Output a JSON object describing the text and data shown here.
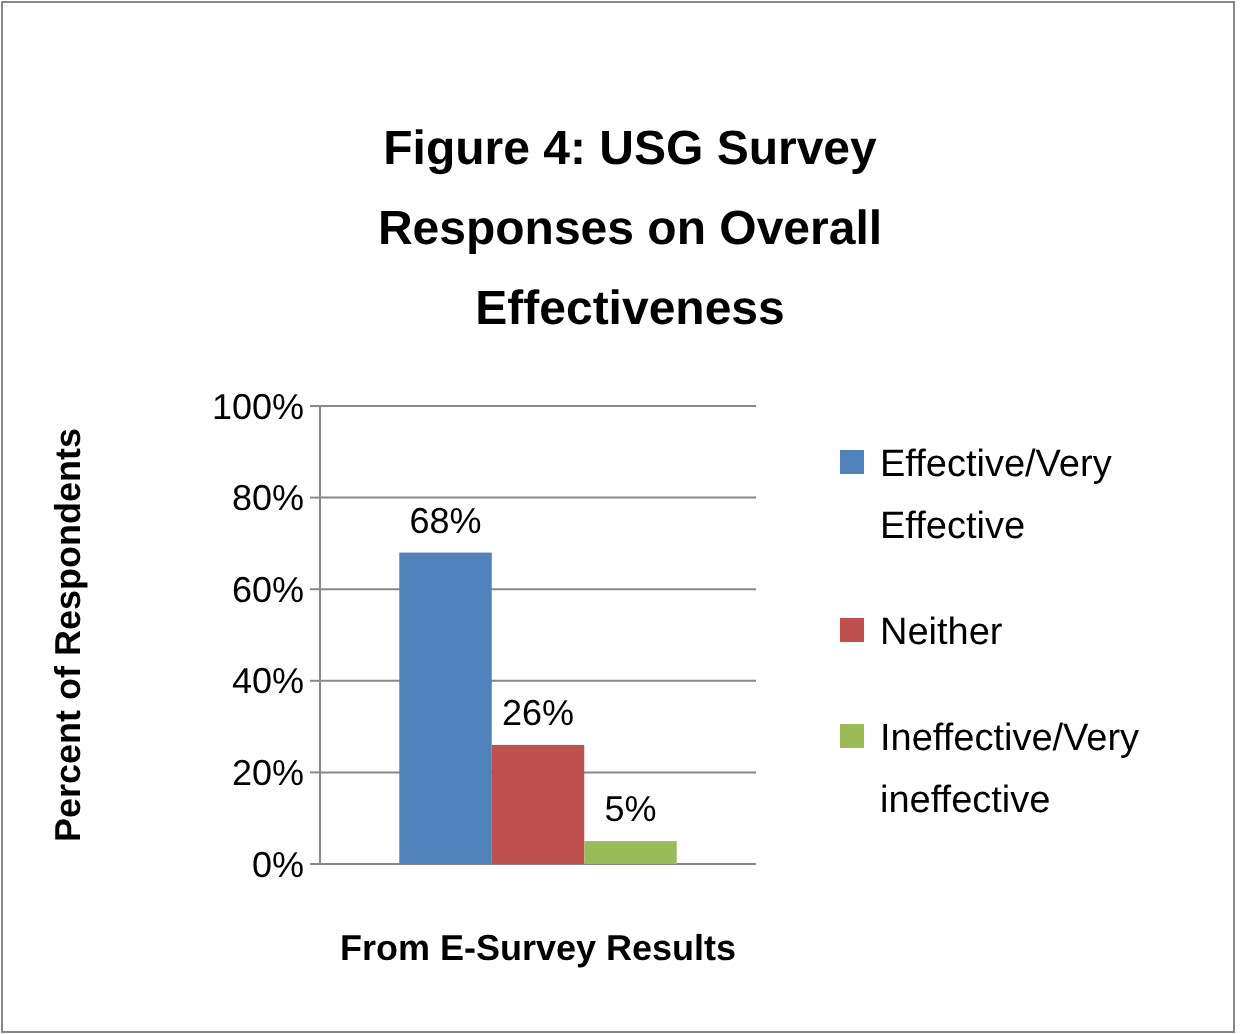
{
  "chart_data": {
    "type": "bar",
    "title": "Figure 4: USG Survey Responses on Overall Effectiveness",
    "xlabel": "From E-Survey Results",
    "ylabel": "Percent of Respondents",
    "categories": [
      null
    ],
    "series": [
      {
        "name": "Effective/Very Effective",
        "color": "#4f81bd",
        "values": [
          68
        ],
        "value_labels": [
          "68%"
        ]
      },
      {
        "name": "Neither",
        "color": "#c0504d",
        "values": [
          26
        ],
        "value_labels": [
          "26%"
        ]
      },
      {
        "name": "Ineffective/Very ineffective",
        "color": "#9bbb59",
        "values": [
          5
        ],
        "value_labels": [
          "5%"
        ]
      }
    ],
    "ylim": [
      0,
      100
    ],
    "yticks": [
      {
        "value": 0,
        "label": "0%"
      },
      {
        "value": 20,
        "label": "20%"
      },
      {
        "value": 40,
        "label": "40%"
      },
      {
        "value": 60,
        "label": "60%"
      },
      {
        "value": 80,
        "label": "80%"
      },
      {
        "value": 100,
        "label": "100%"
      }
    ],
    "grid": "y",
    "legend": "right"
  }
}
